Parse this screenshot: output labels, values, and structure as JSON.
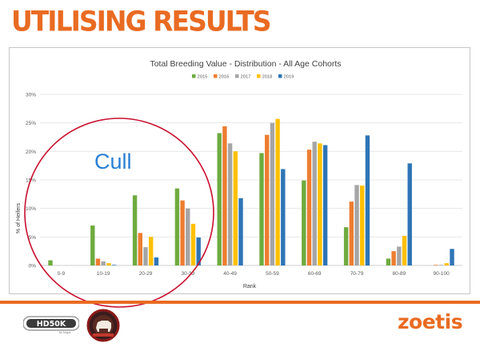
{
  "slide": {
    "title": "UTILISING RESULTS",
    "brand": "zoetis"
  },
  "colors": {
    "accent": "#e96b22",
    "cull_circle": "#c8102e"
  },
  "annotation": {
    "cull_label": "Cull"
  },
  "logos": {
    "hd50k_text": "HD50K",
    "hd50k_sub": "for Angus"
  },
  "chart_data": {
    "type": "bar",
    "title": "Total Breeding Value - Distribution - All Age Cohorts",
    "xlabel": "Rank",
    "ylabel": "% of Heifers",
    "ylim": [
      0,
      30
    ],
    "yticks": [
      "0%",
      "5%",
      "10%",
      "15%",
      "20%",
      "25%",
      "30%"
    ],
    "grid": true,
    "legend_position": "top",
    "categories": [
      "0-9",
      "10-19",
      "20-29",
      "30-39",
      "40-49",
      "50-59",
      "60-69",
      "70-79",
      "80-89",
      "90-100"
    ],
    "series": [
      {
        "name": "2015",
        "color": "#6fab3f",
        "values": [
          0.9,
          7.0,
          12.3,
          13.5,
          23.2,
          19.7,
          14.9,
          6.7,
          1.2,
          0.0
        ]
      },
      {
        "name": "2016",
        "color": "#ed7d31",
        "values": [
          0.0,
          1.2,
          5.7,
          11.4,
          24.4,
          22.9,
          20.3,
          11.2,
          2.5,
          0.1
        ]
      },
      {
        "name": "2017",
        "color": "#a5a5a5",
        "values": [
          0.0,
          0.7,
          3.2,
          10.0,
          21.4,
          25.0,
          21.7,
          14.1,
          3.3,
          0.1
        ]
      },
      {
        "name": "2018",
        "color": "#ffc000",
        "values": [
          0.0,
          0.4,
          5.0,
          7.3,
          20.0,
          25.7,
          21.4,
          14.0,
          5.2,
          0.4
        ]
      },
      {
        "name": "2019",
        "color": "#2e75b6",
        "values": [
          0.0,
          0.1,
          1.4,
          4.9,
          11.8,
          16.9,
          21.1,
          22.8,
          17.9,
          2.9
        ]
      }
    ]
  }
}
